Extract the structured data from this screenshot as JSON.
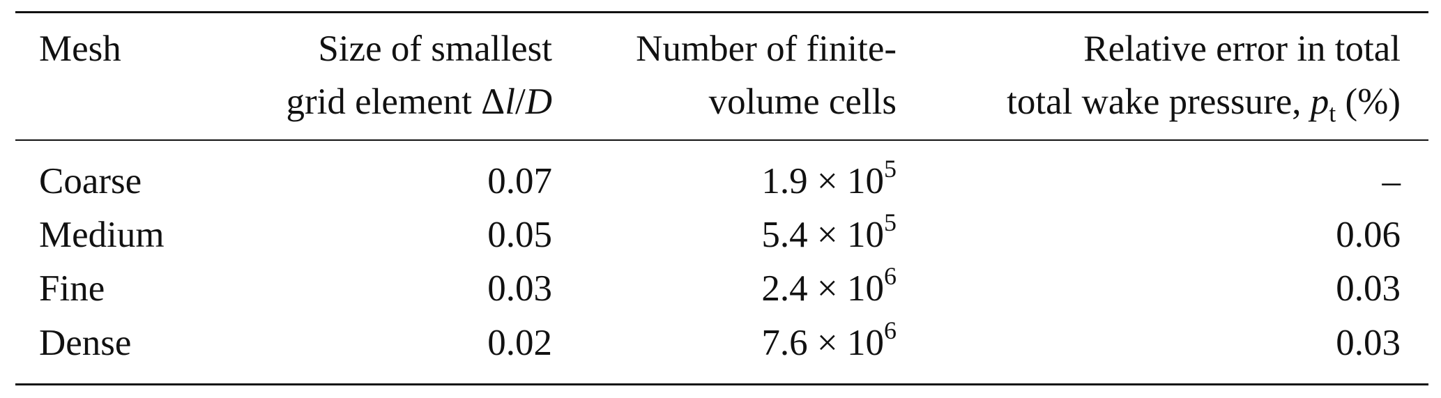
{
  "table": {
    "header": {
      "mesh": "Mesh",
      "size_line1": "Size of smallest",
      "size_line2_text": "grid element ",
      "size_line2_symbol": "Δ",
      "size_line2_l": "l",
      "size_line2_slash": "/",
      "size_line2_D": "D",
      "cells_line1": "Number of finite-",
      "cells_line2": "volume cells",
      "error_line1": "Relative error in total",
      "error_line2_text": "total wake pressure, ",
      "error_line2_p": "p",
      "error_line2_sub": "t",
      "error_line2_unit": " (%)"
    },
    "rows": [
      {
        "mesh": "Coarse",
        "size": "0.07",
        "cells_mantissa": "1.9 × 10",
        "cells_exp": "5",
        "error": "–"
      },
      {
        "mesh": "Medium",
        "size": "0.05",
        "cells_mantissa": "5.4 × 10",
        "cells_exp": "5",
        "error": "0.06"
      },
      {
        "mesh": "Fine",
        "size": "0.03",
        "cells_mantissa": "2.4 × 10",
        "cells_exp": "6",
        "error": "0.03"
      },
      {
        "mesh": "Dense",
        "size": "0.02",
        "cells_mantissa": "7.6 × 10",
        "cells_exp": "6",
        "error": "0.03"
      }
    ]
  }
}
